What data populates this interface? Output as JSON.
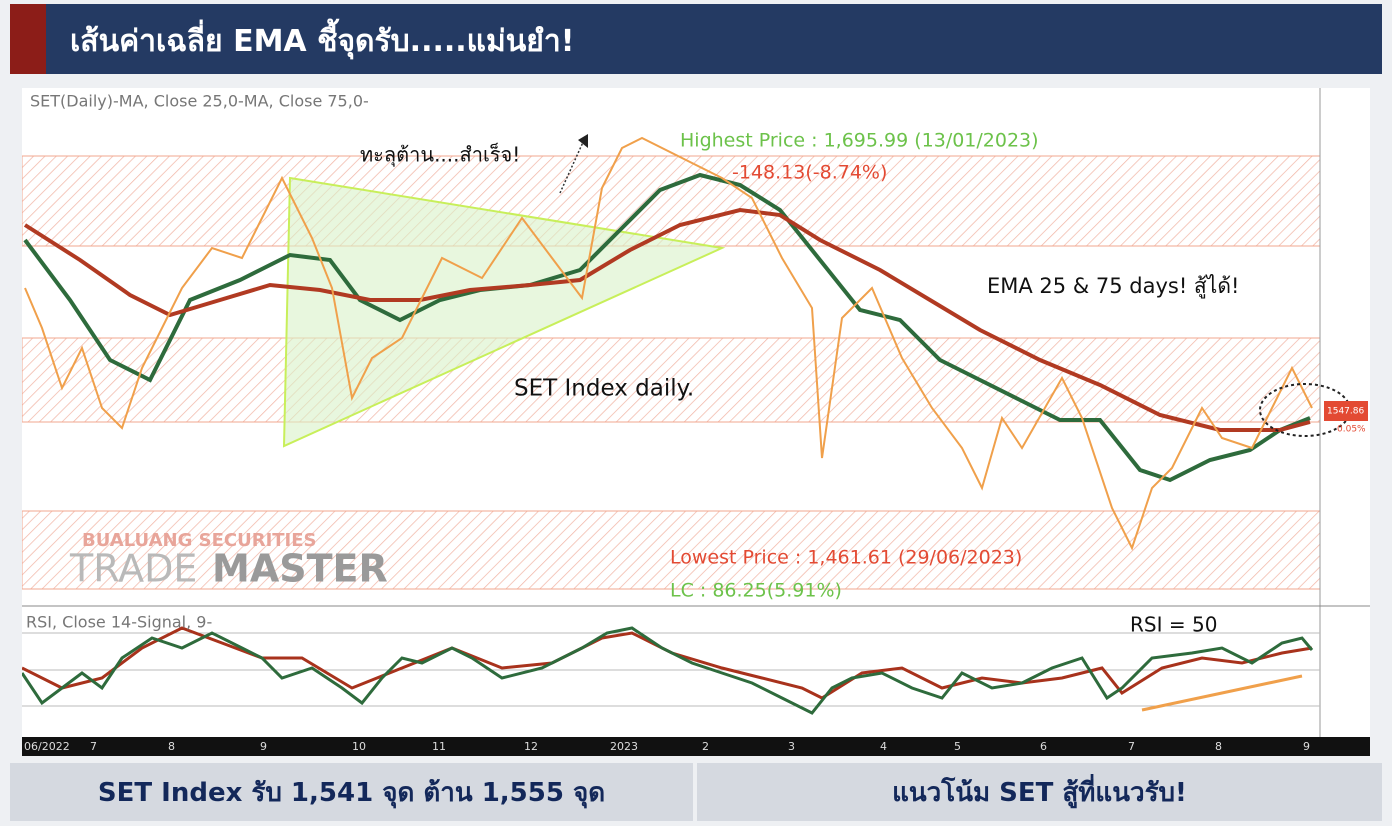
{
  "header": {
    "title": "เส้นค่าเฉลี่ย EMA ชี้จุดรับ.....แม่นยำ!"
  },
  "chart": {
    "legend": "SET(Daily)-MA, Close 25,0-MA, Close 75,0-",
    "breakout_note": "ทะลุต้าน....สำเร็จ!",
    "highest_price": "Highest Price : 1,695.99 (13/01/2023)",
    "drawdown": "-148.13(-8.74%)",
    "ema_note": "EMA 25 & 75 days! สู้ได้!",
    "index_note": "SET Index daily.",
    "lowest_price": "Lowest Price : 1,461.61 (29/06/2023)",
    "lc": "LC : 86.25(5.91%)",
    "last_price": "1547.86",
    "change": "0.05%",
    "watermark_top": "BUALUANG SECURITIES",
    "watermark_trade": "TRADE",
    "watermark_master": "MASTER",
    "rsi_legend": "RSI, Close 14-Signal, 9-",
    "rsi_note": "RSI = 50",
    "x_labels": [
      "06/2022",
      "7",
      "8",
      "9",
      "10",
      "11",
      "12",
      "2023",
      "2",
      "3",
      "4",
      "5",
      "6",
      "7",
      "8",
      "9"
    ]
  },
  "footer": {
    "left": "SET Index รับ 1,541 จุด ต้าน 1,555 จุด",
    "right": "แนวโน้ม SET สู้ที่แนวรับ!"
  }
}
